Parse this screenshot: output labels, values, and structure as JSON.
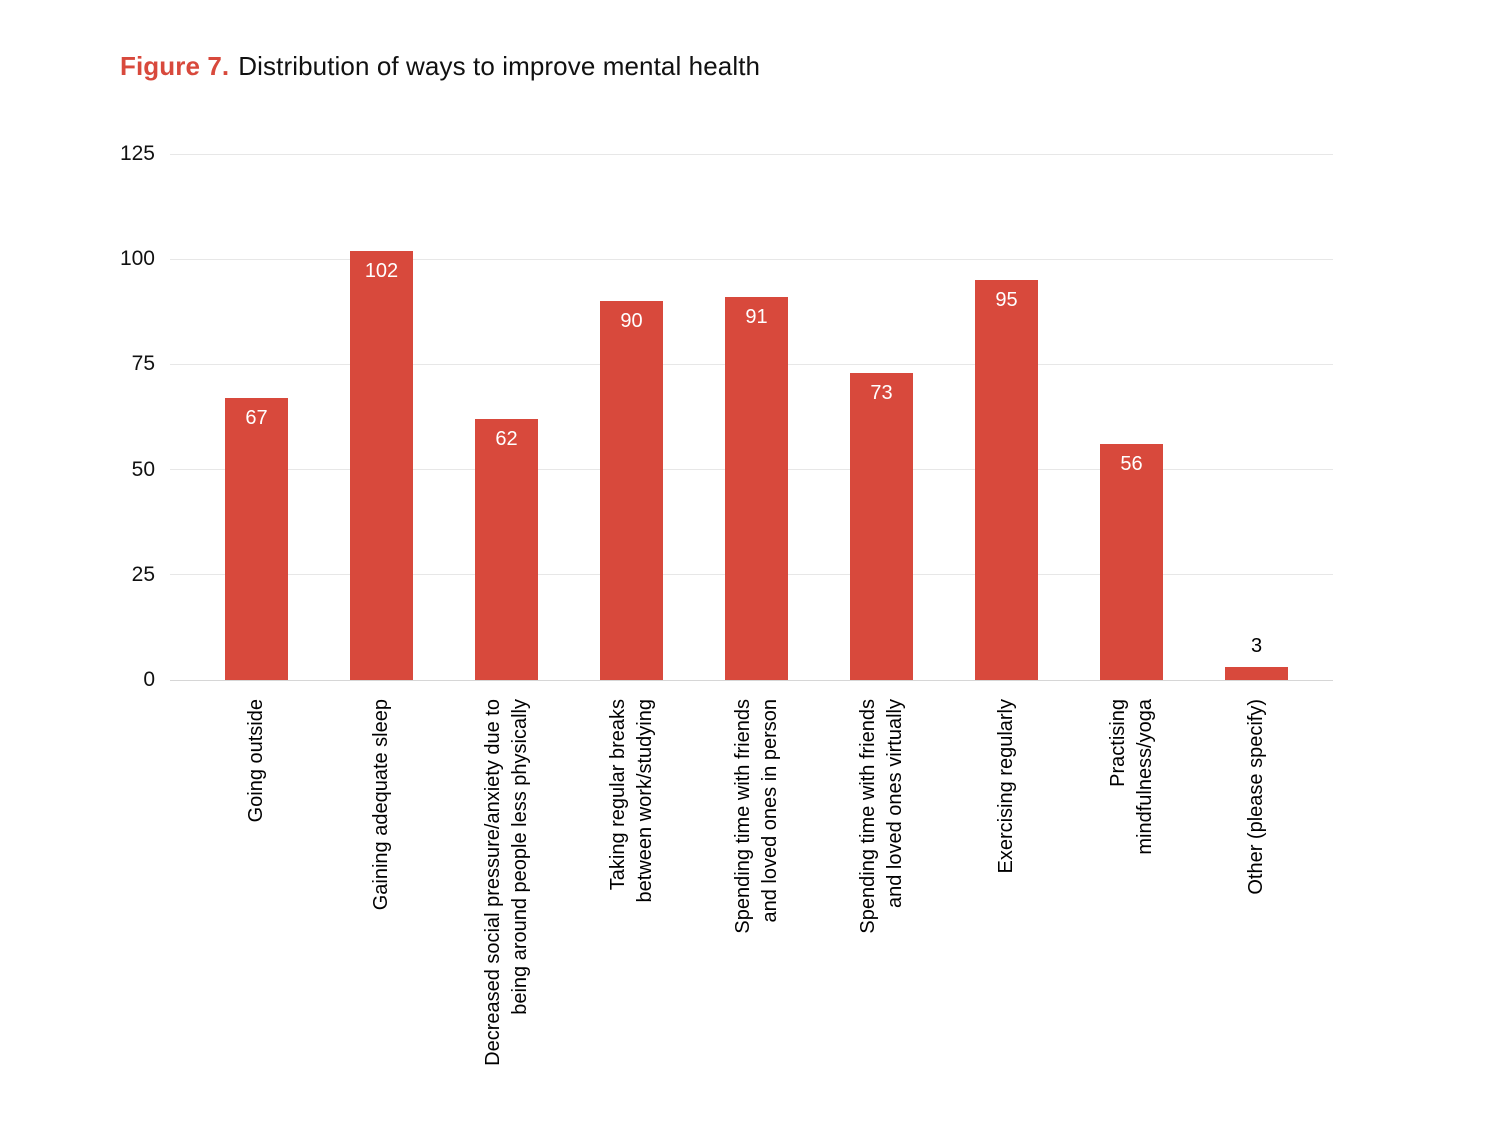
{
  "figure": {
    "label": "Figure 7.",
    "title": "Distribution of ways to improve mental health",
    "label_color": "#d8493c",
    "title_color": "#111111"
  },
  "chart_data": {
    "type": "bar",
    "title": "Figure 7. Distribution of ways to improve mental health",
    "categories": [
      "Going outside",
      "Gaining adequate sleep",
      "Decreased social pressure/anxiety due to being around people less physically",
      "Taking regular breaks between work/studying",
      "Spending time with friends and loved ones in person",
      "Spending time with friends and loved ones virtually",
      "Exercising regularly",
      "Practising mindfulness/yoga",
      "Other (please specify)"
    ],
    "category_lines": [
      [
        "Going outside"
      ],
      [
        "Gaining adequate sleep"
      ],
      [
        "Decreased social pressure/anxiety due to",
        "being around people less physically"
      ],
      [
        "Taking regular breaks",
        "between work/studying"
      ],
      [
        "Spending time with friends",
        "and loved ones in person"
      ],
      [
        "Spending time with friends",
        "and loved ones virtually"
      ],
      [
        "Exercising regularly"
      ],
      [
        "Practising",
        "mindfulness/yoga"
      ],
      [
        "Other (please specify)"
      ]
    ],
    "values": [
      67,
      102,
      62,
      90,
      91,
      73,
      95,
      56,
      3
    ],
    "xlabel": "",
    "ylabel": "",
    "ylim": [
      0,
      125
    ],
    "yticks": [
      0,
      25,
      50,
      75,
      100,
      125
    ],
    "grid": true,
    "legend": "none",
    "bar_color": "#d8493c",
    "value_label_color_inside": "#ffffff",
    "value_label_color_outside": "#000000",
    "gridline_color": "#e7e7e7",
    "baseline_color": "#d6d6d6",
    "tick_label_color": "#111111"
  }
}
